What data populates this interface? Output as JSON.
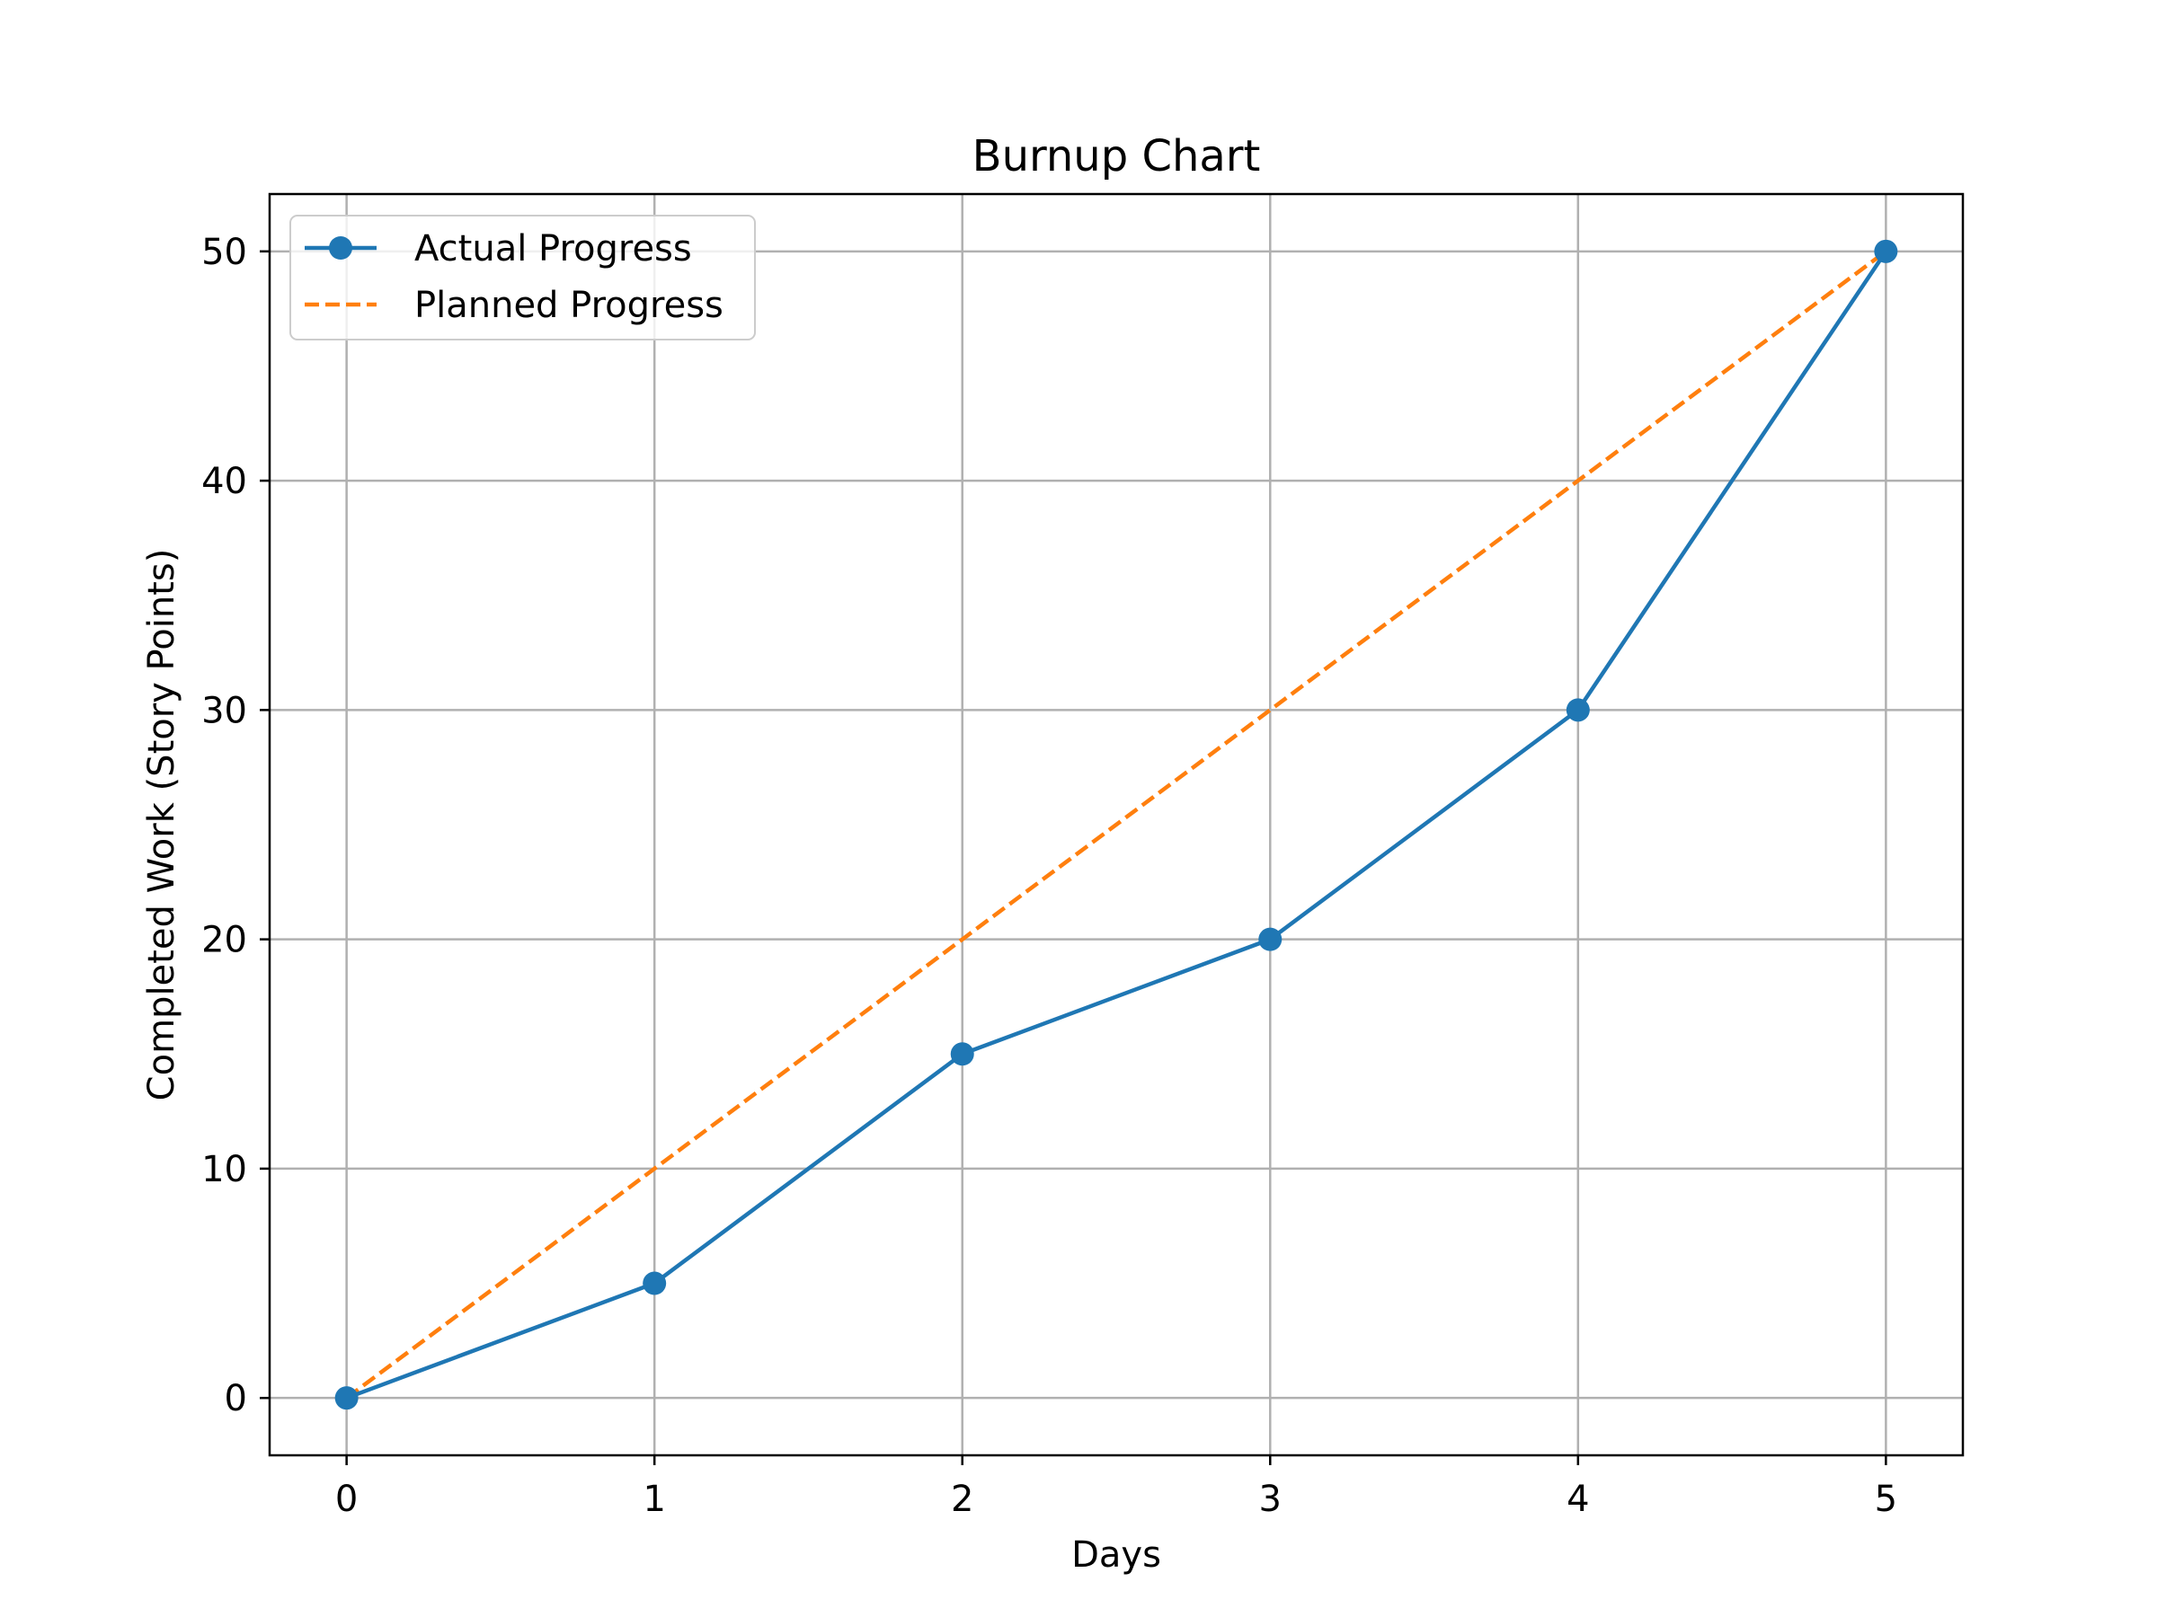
{
  "chart_data": {
    "type": "line",
    "title": "Burnup Chart",
    "xlabel": "Days",
    "ylabel": "Completed Work (Story Points)",
    "x": [
      0,
      1,
      2,
      3,
      4,
      5
    ],
    "xlim": [
      -0.25,
      5.25
    ],
    "ylim": [
      -2.5,
      52.5
    ],
    "xticks": [
      0,
      1,
      2,
      3,
      4,
      5
    ],
    "yticks": [
      0,
      10,
      20,
      30,
      40,
      50
    ],
    "grid": true,
    "legend_position": "top-left",
    "series": [
      {
        "name": "Actual Progress",
        "values": [
          0,
          5,
          15,
          20,
          30,
          50
        ],
        "color": "#1f77b4",
        "line_style": "solid",
        "marker": "circle"
      },
      {
        "name": "Planned Progress",
        "values": [
          0,
          10,
          20,
          30,
          40,
          50
        ],
        "color": "#ff7f0e",
        "line_style": "dashed",
        "marker": "none"
      }
    ]
  }
}
